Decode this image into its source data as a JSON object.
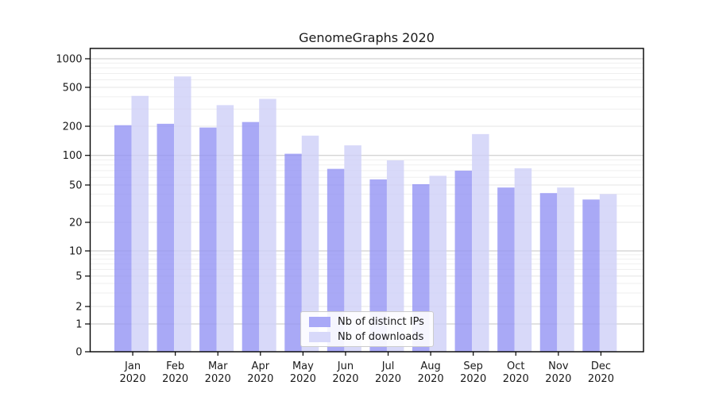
{
  "figure": {
    "background": "#ffffff"
  },
  "chart_data": {
    "type": "bar",
    "title": "GenomeGraphs 2020",
    "categories": [
      "Jan 2020",
      "Feb 2020",
      "Mar 2020",
      "Apr 2020",
      "May 2020",
      "Jun 2020",
      "Jul 2020",
      "Aug 2020",
      "Sep 2020",
      "Oct 2020",
      "Nov 2020",
      "Dec 2020"
    ],
    "series": [
      {
        "name": "Nb of distinct IPs",
        "color": "#a9a9f7",
        "fill": "rgba(147,147,244,0.8)",
        "values": [
          205,
          212,
          194,
          221,
          104,
          73,
          57,
          51,
          70,
          47,
          41,
          35
        ]
      },
      {
        "name": "Nb of downloads",
        "color": "#d8d9fa",
        "fill": "rgba(206,207,248,0.8)",
        "values": [
          409,
          651,
          329,
          381,
          160,
          127,
          89,
          62,
          166,
          74,
          47,
          40
        ]
      }
    ],
    "xlabel": "",
    "ylabel": "",
    "yscale": "symlog",
    "y_tick_labels": [
      0,
      1,
      2,
      5,
      10,
      20,
      50,
      100,
      200,
      500,
      1000
    ],
    "ylim": [
      0,
      1300
    ],
    "grid": true,
    "legend_position": "lower center",
    "colors": {
      "grid_decade": "#c6c6c6",
      "grid_labeled": "#e4e4e4",
      "grid_minor": "#efefef",
      "axis": "#000000",
      "tick_text": "#1a1a1a"
    }
  }
}
